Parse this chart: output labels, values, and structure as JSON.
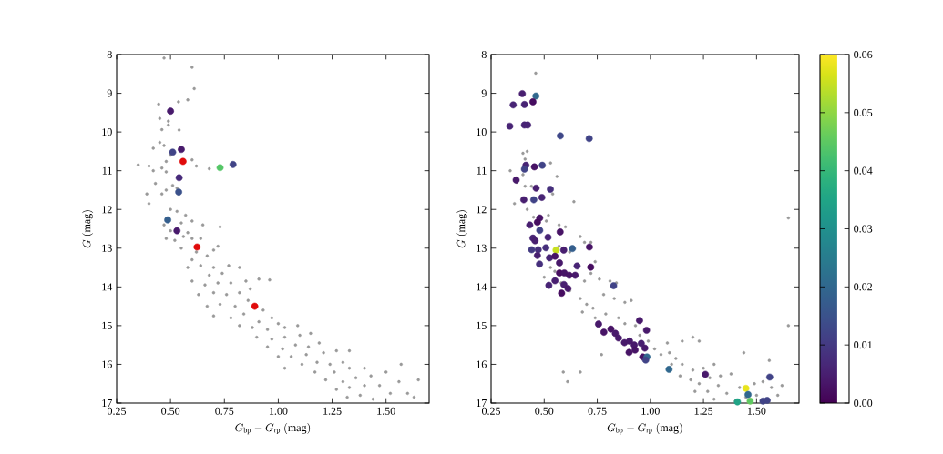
{
  "chart_data": [
    {
      "type": "scatter",
      "xlabel": "G_{\\rm bp} - G_{\\rm rp}\\ \\mathrm{(mag)}",
      "ylabel": "G\\ \\mathrm{(mag)}",
      "xlim": [
        0.25,
        1.7
      ],
      "ylim": [
        17,
        8
      ],
      "xticks": [
        0.25,
        {
          "value": 0.5,
          "label": "0.50"
        },
        0.75,
        {
          "value": 1,
          "label": "1.00"
        },
        1.25,
        {
          "value": 1.5,
          "label": "1.50"
        }
      ],
      "yticks": [
        8,
        9,
        10,
        11,
        12,
        13,
        14,
        15,
        16,
        17
      ],
      "marker": "circle",
      "series": [
        {
          "color": "#999999",
          "x": [
            0.47,
            0.6,
            0.61,
            0.58,
            0.537,
            0.445,
            0.45,
            0.46,
            0.49,
            0.49,
            0.54,
            0.42,
            0.45,
            0.47,
            0.5,
            0.48,
            0.35,
            0.4,
            0.42,
            0.46,
            0.48,
            0.6,
            0.62,
            0.68,
            0.43,
            0.48,
            0.51,
            0.53,
            0.54,
            0.39,
            0.46,
            0.4,
            0.5,
            0.53,
            0.57,
            0.47,
            0.5,
            0.55,
            0.6,
            0.58,
            0.65,
            0.73,
            0.48,
            0.52,
            0.56,
            0.6,
            0.64,
            0.55,
            0.62,
            0.7,
            0.72,
            0.6,
            0.67,
            0.58,
            0.64,
            0.7,
            0.77,
            0.82,
            0.68,
            0.74,
            0.6,
            0.66,
            0.72,
            0.78,
            0.85,
            0.91,
            0.96,
            0.63,
            0.7,
            0.76,
            0.82,
            0.87,
            0.67,
            0.73,
            0.8,
            0.86,
            0.93,
            0.7,
            0.78,
            0.84,
            0.91,
            0.97,
            1.0,
            0.82,
            0.88,
            0.95,
            1.03,
            1.09,
            0.9,
            0.97,
            1.03,
            1.1,
            1.15,
            0.95,
            1.02,
            1.08,
            1.14,
            1.19,
            1.0,
            1.06,
            1.13,
            1.21,
            1.27,
            1.33,
            1.03,
            1.11,
            1.18,
            1.24,
            1.3,
            1.17,
            1.26,
            1.33,
            1.4,
            1.22,
            1.3,
            1.36,
            1.43,
            1.5,
            1.27,
            1.33,
            1.4,
            1.47,
            1.56,
            1.65,
            1.32,
            1.38,
            1.44,
            1.52,
            1.6,
            1.63,
            1.57
          ],
          "values": [
            8.09,
            8.33,
            8.88,
            9.17,
            9.22,
            9.28,
            9.65,
            9.94,
            9.72,
            9.82,
            9.95,
            10.42,
            10.27,
            10.35,
            10.6,
            10.76,
            10.85,
            10.88,
            11.0,
            10.93,
            11.03,
            10.72,
            10.88,
            10.95,
            11.33,
            11.5,
            11.38,
            11.45,
            11.6,
            11.6,
            11.6,
            11.85,
            12.0,
            12.05,
            12.15,
            12.4,
            12.55,
            12.35,
            12.3,
            12.6,
            12.4,
            12.45,
            12.75,
            12.8,
            12.7,
            12.75,
            12.75,
            13.0,
            13.1,
            13.05,
            12.95,
            13.3,
            13.2,
            13.5,
            13.45,
            13.5,
            13.45,
            13.5,
            13.7,
            13.65,
            13.85,
            13.95,
            13.9,
            13.9,
            13.85,
            13.8,
            13.82,
            14.2,
            14.15,
            14.2,
            14.15,
            14.05,
            14.5,
            14.45,
            14.5,
            14.35,
            14.6,
            14.75,
            14.8,
            14.7,
            14.9,
            14.8,
            14.95,
            15.0,
            15.05,
            15.1,
            15.05,
            15.0,
            15.3,
            15.35,
            15.3,
            15.25,
            15.2,
            15.55,
            15.6,
            15.5,
            15.55,
            15.45,
            15.8,
            15.8,
            15.75,
            15.7,
            15.65,
            15.65,
            16.1,
            16.0,
            15.95,
            16.0,
            15.95,
            16.2,
            16.2,
            16.1,
            16.1,
            16.4,
            16.45,
            16.35,
            16.3,
            16.2,
            16.65,
            16.6,
            16.55,
            16.55,
            16.45,
            16.4,
            16.85,
            16.8,
            16.9,
            16.75,
            16.75,
            16.85,
            16.0
          ]
        },
        {
          "x": [
            0.5,
            0.55,
            0.51,
            0.73,
            0.79,
            0.54,
            0.538,
            0.487,
            0.53
          ],
          "values": [
            9.46,
            10.45,
            10.52,
            10.92,
            10.84,
            11.18,
            11.55,
            12.27,
            12.55
          ],
          "colors": [
            "#481a6c",
            "#481a6c",
            "#414487",
            "#55c667",
            "#414487",
            "#472a7a",
            "#3b528b",
            "#355f8d",
            "#481a6c"
          ]
        },
        {
          "color": "#e00b0b",
          "x": [
            0.558,
            0.623,
            0.891
          ],
          "values": [
            10.76,
            12.97,
            14.5
          ]
        }
      ]
    },
    {
      "type": "scatter",
      "xlabel": "G_{\\rm bp} - G_{\\rm rp}\\ \\mathrm{(mag)}",
      "ylabel": "G\\ \\mathrm{(mag)}",
      "xlim": [
        0.25,
        1.7
      ],
      "ylim": [
        17,
        8
      ],
      "xticks": [
        0.25,
        {
          "value": 0.5,
          "label": "0.50"
        },
        0.75,
        {
          "value": 1,
          "label": "1.00"
        },
        1.25,
        {
          "value": 1.5,
          "label": "1.50"
        }
      ],
      "yticks": [
        8,
        9,
        10,
        11,
        12,
        13,
        14,
        15,
        16,
        17
      ],
      "marker": "circle",
      "clim": [
        0,
        0.06
      ],
      "cticks": [
        {
          "value": 0,
          "label": "0.00"
        },
        {
          "value": 0.01,
          "label": "0.01"
        },
        {
          "value": 0.02,
          "label": "0.02"
        },
        {
          "value": 0.03,
          "label": "0.03"
        },
        {
          "value": 0.04,
          "label": "0.04"
        },
        {
          "value": 0.05,
          "label": "0.05"
        },
        {
          "value": 0.06,
          "label": "0.06"
        }
      ],
      "series": [
        {
          "color": "#999999",
          "x": [
            0.46,
            0.34,
            0.37,
            0.4,
            0.41,
            0.42,
            0.4,
            0.44,
            0.41,
            0.47,
            0.53,
            0.56,
            0.54,
            0.64,
            0.36,
            0.42,
            0.45,
            0.52,
            0.51,
            0.57,
            0.6,
            0.67,
            0.69,
            0.57,
            0.62,
            0.72,
            0.74,
            0.53,
            0.55,
            0.5,
            0.58,
            0.62,
            0.69,
            0.72,
            0.76,
            0.81,
            0.84,
            0.67,
            0.7,
            0.73,
            0.78,
            0.83,
            0.88,
            0.91,
            0.68,
            0.74,
            0.79,
            0.85,
            0.75,
            0.81,
            0.88,
            0.93,
            0.9,
            0.95,
            0.99,
            1.02,
            1.05,
            1.09,
            1.12,
            0.77,
            1.08,
            1.15,
            1.2,
            1.23,
            1.1,
            1.15,
            1.2,
            1.25,
            1.3,
            1.14,
            1.19,
            1.23,
            1.28,
            1.33,
            1.38,
            1.21,
            1.27,
            1.32,
            1.36,
            1.42,
            1.49,
            1.53,
            1.57,
            1.4,
            1.3,
            1.45,
            1.5,
            1.56,
            1.44,
            1.65,
            1.65,
            0.61,
            0.67,
            0.59,
            1.62,
            1.6
          ],
          "values": [
            8.48,
            11.0,
            11.3,
            10.55,
            10.7,
            10.5,
            11.1,
            11.4,
            11.4,
            11.45,
            10.8,
            11.15,
            11.6,
            11.8,
            11.85,
            12.0,
            12.2,
            12.15,
            12.3,
            12.4,
            12.45,
            12.7,
            12.85,
            12.95,
            13.1,
            12.85,
            13.35,
            13.5,
            13.6,
            13.75,
            13.9,
            14.1,
            13.85,
            13.65,
            13.8,
            13.85,
            13.9,
            14.3,
            14.45,
            14.55,
            14.2,
            14.3,
            14.4,
            14.35,
            14.65,
            14.8,
            14.7,
            14.8,
            15.0,
            15.05,
            14.95,
            15.0,
            15.35,
            15.25,
            15.4,
            15.6,
            15.75,
            15.7,
            15.85,
            15.75,
            15.45,
            15.4,
            15.3,
            15.4,
            16.0,
            16.0,
            16.15,
            16.1,
            16.0,
            16.3,
            16.4,
            16.5,
            16.35,
            16.3,
            16.25,
            16.7,
            16.7,
            16.55,
            16.75,
            16.6,
            16.5,
            16.45,
            16.6,
            16.95,
            16.9,
            16.85,
            16.8,
            15.9,
            15.7,
            12.22,
            15.0,
            16.45,
            16.2,
            16.2,
            16.55,
            16.8
          ]
        },
        {
          "x": [
            0.397,
            0.461,
            0.354,
            0.407,
            0.447,
            0.338,
            0.407,
            0.422,
            0.576,
            0.712,
            0.414,
            0.407,
            0.454,
            0.491,
            0.368,
            0.462,
            0.529,
            0.404,
            0.451,
            0.489,
            0.479,
            0.468,
            0.432,
            0.479,
            0.575,
            0.447,
            0.457,
            0.518,
            0.441,
            0.472,
            0.508,
            0.556,
            0.592,
            0.633,
            0.713,
            0.468,
            0.525,
            0.551,
            0.478,
            0.572,
            0.655,
            0.719,
            0.572,
            0.595,
            0.618,
            0.646,
            0.551,
            0.522,
            0.593,
            0.612,
            0.582,
            0.827,
            0.756,
            0.781,
            0.814,
            0.835,
            0.85,
            0.878,
            0.902,
            0.924,
            0.9,
            0.928,
            0.957,
            0.974,
            0.949,
            0.982,
            0.964,
            0.984,
            0.978,
            1.088,
            1.259,
            1.45,
            1.562,
            1.46,
            1.41,
            1.47,
            1.53,
            1.55
          ],
          "values": [
            9.01,
            9.07,
            9.3,
            9.29,
            9.22,
            9.85,
            9.82,
            9.82,
            10.1,
            10.17,
            10.86,
            10.96,
            10.9,
            10.86,
            11.24,
            11.45,
            11.48,
            11.75,
            11.75,
            11.69,
            12.22,
            12.33,
            12.4,
            12.54,
            12.58,
            12.74,
            12.81,
            12.72,
            13.04,
            13.04,
            12.99,
            13.05,
            13.05,
            13.01,
            12.97,
            13.19,
            13.25,
            13.21,
            13.41,
            13.38,
            13.46,
            13.49,
            13.64,
            13.64,
            13.7,
            13.7,
            13.84,
            13.96,
            13.94,
            14.04,
            14.16,
            13.97,
            14.96,
            15.17,
            15.09,
            15.2,
            15.32,
            15.44,
            15.4,
            15.5,
            15.69,
            15.63,
            15.46,
            15.58,
            14.87,
            15.12,
            15.81,
            15.81,
            15.89,
            16.13,
            16.26,
            16.62,
            16.33,
            16.78,
            16.97,
            16.95,
            16.95,
            16.93
          ],
          "cvalues": [
            0.005,
            0.02,
            0.006,
            0.006,
            0.002,
            0.006,
            0.006,
            0.006,
            0.013,
            0.012,
            0.006,
            0.012,
            0.003,
            0.012,
            0.004,
            0.005,
            0.008,
            0.005,
            0.012,
            0.006,
            0.003,
            0.002,
            0.005,
            0.012,
            0.003,
            0.006,
            0.005,
            0.006,
            0.01,
            0.008,
            0.008,
            0.055,
            0.005,
            0.018,
            0.003,
            0.005,
            0.006,
            0.003,
            0.008,
            0.004,
            0.006,
            0.002,
            0.002,
            0.003,
            0.003,
            0.004,
            0.005,
            0.006,
            0.005,
            0.004,
            0.002,
            0.012,
            0.004,
            0.003,
            0.003,
            0.004,
            0.004,
            0.004,
            0.004,
            0.004,
            0.003,
            0.003,
            0.005,
            0.004,
            0.004,
            0.004,
            0.003,
            0.02,
            0.012,
            0.02,
            0.004,
            0.058,
            0.012,
            0.02,
            0.035,
            0.045,
            0.012,
            0.012
          ],
          "colors": [
            "#481f70",
            "#31688e",
            "#482576",
            "#482576",
            "#46085c",
            "#482576",
            "#482576",
            "#482576",
            "#3f4889",
            "#414487",
            "#482576",
            "#414487",
            "#471063",
            "#414487",
            "#48186a",
            "#481f70",
            "#46337e",
            "#481f70",
            "#414487",
            "#482576",
            "#471063",
            "#46085c",
            "#481f70",
            "#414487",
            "#471063",
            "#482576",
            "#481f70",
            "#482576",
            "#433e85",
            "#46337e",
            "#46337e",
            "#d0e11c",
            "#481f70",
            "#355f8d",
            "#471063",
            "#481f70",
            "#482576",
            "#471063",
            "#46337e",
            "#48186a",
            "#482576",
            "#46085c",
            "#46085c",
            "#471063",
            "#471063",
            "#48186a",
            "#481f70",
            "#482576",
            "#481f70",
            "#48186a",
            "#46085c",
            "#414487",
            "#48186a",
            "#471063",
            "#471063",
            "#48186a",
            "#48186a",
            "#48186a",
            "#48186a",
            "#48186a",
            "#471063",
            "#471063",
            "#481f70",
            "#48186a",
            "#48186a",
            "#48186a",
            "#471063",
            "#31688e",
            "#414487",
            "#31688e",
            "#48186a",
            "#eae51a",
            "#414487",
            "#31688e",
            "#20a386",
            "#7ad151",
            "#414487",
            "#414487"
          ]
        }
      ]
    }
  ]
}
